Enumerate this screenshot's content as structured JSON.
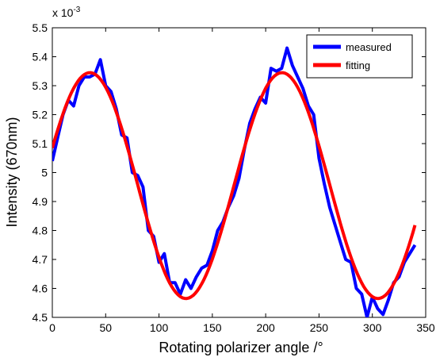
{
  "chart_data": {
    "type": "line",
    "xlabel": "Rotating polarizer angle /°",
    "ylabel": "Intensity (670nm)",
    "y_multiplier_label": "x 10",
    "y_multiplier_exponent": "-3",
    "xlim": [
      0,
      350
    ],
    "ylim": [
      4.5,
      5.5
    ],
    "x_ticks": [
      0,
      50,
      100,
      150,
      200,
      250,
      300,
      350
    ],
    "y_ticks": [
      4.5,
      4.6,
      4.7,
      4.8,
      4.9,
      5.0,
      5.1,
      5.2,
      5.3,
      5.4,
      5.5
    ],
    "y_tick_labels": [
      "4.5",
      "4.6",
      "4.7",
      "4.8",
      "4.9",
      "5",
      "5.1",
      "5.2",
      "5.3",
      "5.4",
      "5.5"
    ],
    "grid": false,
    "legend_position": "top-right",
    "series": [
      {
        "name": "measured",
        "color": "#0000ff",
        "x": [
          0,
          5,
          10,
          15,
          20,
          25,
          30,
          35,
          40,
          45,
          50,
          55,
          60,
          65,
          70,
          75,
          80,
          85,
          90,
          95,
          100,
          105,
          110,
          115,
          120,
          125,
          130,
          135,
          140,
          145,
          150,
          155,
          160,
          165,
          170,
          175,
          180,
          185,
          190,
          195,
          200,
          205,
          210,
          215,
          220,
          225,
          230,
          235,
          240,
          245,
          250,
          255,
          260,
          265,
          270,
          275,
          280,
          285,
          290,
          295,
          300,
          305,
          310,
          315,
          320,
          325,
          330,
          335,
          340
        ],
        "y": [
          5.04,
          5.12,
          5.2,
          5.25,
          5.23,
          5.3,
          5.33,
          5.33,
          5.34,
          5.39,
          5.3,
          5.28,
          5.22,
          5.13,
          5.12,
          5.0,
          4.99,
          4.95,
          4.8,
          4.78,
          4.69,
          4.72,
          4.62,
          4.62,
          4.58,
          4.63,
          4.6,
          4.64,
          4.67,
          4.68,
          4.73,
          4.8,
          4.83,
          4.88,
          4.92,
          4.98,
          5.08,
          5.17,
          5.22,
          5.26,
          5.24,
          5.36,
          5.35,
          5.36,
          5.43,
          5.37,
          5.33,
          5.29,
          5.23,
          5.2,
          5.05,
          4.96,
          4.88,
          4.82,
          4.76,
          4.7,
          4.69,
          4.6,
          4.58,
          4.5,
          4.57,
          4.53,
          4.51,
          4.56,
          4.62,
          4.64,
          4.69,
          4.72,
          4.75
        ]
      },
      {
        "name": "fitting",
        "color": "#ff0000",
        "model": "sine",
        "mean": 4.955,
        "amplitude": 0.39,
        "period": 180,
        "phase_deg": -55,
        "x_range": [
          0,
          340
        ]
      }
    ]
  }
}
